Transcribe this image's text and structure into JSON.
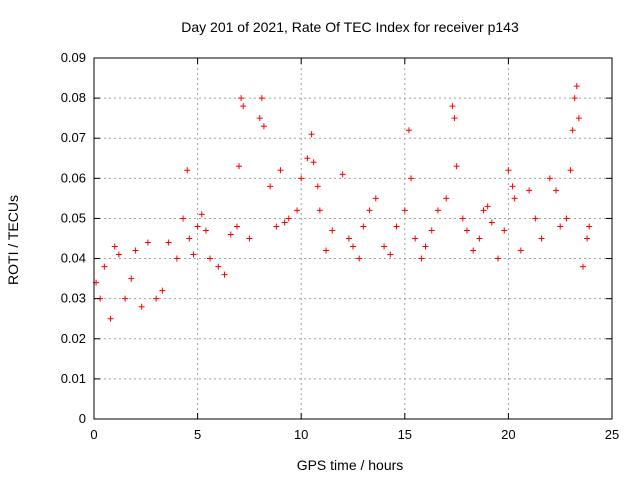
{
  "chart_data": {
    "type": "scatter",
    "title": "Day 201 of 2021, Rate Of TEC Index for receiver p143",
    "xlabel": "GPS time / hours",
    "ylabel": "ROTI / TECUs",
    "xlim": [
      0,
      25
    ],
    "ylim": [
      0,
      0.09
    ],
    "xticks": [
      "0",
      "5",
      "10",
      "15",
      "20",
      "25"
    ],
    "yticks": [
      "0",
      "0.01",
      "0.02",
      "0.03",
      "0.04",
      "0.05",
      "0.06",
      "0.07",
      "0.08",
      "0.09"
    ],
    "grid": true,
    "legend": "none",
    "marker": "plus",
    "color": "#ff0000",
    "series": [
      {
        "x": [
          0.1,
          0.3,
          0.5,
          0.8,
          1.0,
          1.2,
          1.5,
          1.8,
          2.0,
          2.3,
          2.6,
          3.0,
          3.3,
          3.6,
          4.0,
          4.3,
          4.5,
          4.6,
          4.8,
          5.0,
          5.2,
          5.4,
          5.6,
          6.0,
          6.3,
          6.6,
          6.9,
          7.0,
          7.1,
          7.2,
          7.5,
          8.0,
          8.1,
          8.2,
          8.5,
          8.8,
          9.0,
          9.2,
          9.4,
          9.8,
          10.0,
          10.3,
          10.5,
          10.6,
          10.8,
          10.9,
          11.2,
          11.5,
          12.0,
          12.3,
          12.5,
          12.8,
          13.0,
          13.3,
          13.6,
          14.0,
          14.3,
          14.6,
          15.0,
          15.2,
          15.3,
          15.5,
          15.8,
          16.0,
          16.3,
          16.6,
          17.0,
          17.3,
          17.4,
          17.5,
          17.8,
          18.0,
          18.3,
          18.6,
          18.8,
          19.0,
          19.2,
          19.5,
          19.8,
          20.0,
          20.2,
          20.3,
          20.6,
          21.0,
          21.3,
          21.6,
          22.0,
          22.3,
          22.5,
          22.8,
          23.0,
          23.1,
          23.2,
          23.3,
          23.4,
          23.6,
          23.8,
          23.9
        ],
        "y": [
          0.034,
          0.03,
          0.038,
          0.025,
          0.043,
          0.041,
          0.03,
          0.035,
          0.042,
          0.028,
          0.044,
          0.03,
          0.032,
          0.044,
          0.04,
          0.05,
          0.062,
          0.045,
          0.041,
          0.048,
          0.051,
          0.047,
          0.04,
          0.038,
          0.036,
          0.046,
          0.048,
          0.063,
          0.08,
          0.078,
          0.045,
          0.075,
          0.08,
          0.073,
          0.058,
          0.048,
          0.062,
          0.049,
          0.05,
          0.052,
          0.06,
          0.065,
          0.071,
          0.064,
          0.058,
          0.052,
          0.042,
          0.047,
          0.061,
          0.045,
          0.043,
          0.04,
          0.048,
          0.052,
          0.055,
          0.043,
          0.041,
          0.048,
          0.052,
          0.072,
          0.06,
          0.045,
          0.04,
          0.043,
          0.047,
          0.052,
          0.055,
          0.078,
          0.075,
          0.063,
          0.05,
          0.047,
          0.042,
          0.045,
          0.052,
          0.053,
          0.049,
          0.04,
          0.047,
          0.062,
          0.058,
          0.055,
          0.042,
          0.057,
          0.05,
          0.045,
          0.06,
          0.057,
          0.048,
          0.05,
          0.062,
          0.072,
          0.08,
          0.083,
          0.075,
          0.038,
          0.045,
          0.048
        ]
      }
    ]
  }
}
